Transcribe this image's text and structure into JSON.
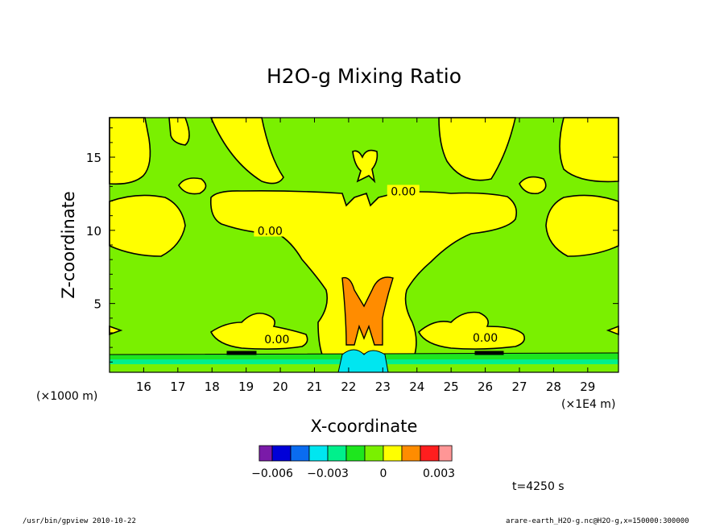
{
  "chart_data": {
    "type": "heatmap",
    "title": "H2O-g Mixing Ratio",
    "xlabel": "X-coordinate",
    "ylabel": "Z-coordinate",
    "x_unit_left": "(×1000 m)",
    "x_unit_right": "(×1E4 m)",
    "x_ticks": [
      16,
      17,
      18,
      19,
      20,
      21,
      22,
      23,
      24,
      25,
      26,
      27,
      28,
      29
    ],
    "y_ticks": [
      5,
      10,
      15
    ],
    "xlim": [
      15.0,
      29.9
    ],
    "ylim": [
      0.3,
      17.7
    ],
    "grid": false,
    "contour_labels": [
      {
        "text": "0.00",
        "x": 23.6,
        "y": 12.5
      },
      {
        "text": "0.00",
        "x": 19.7,
        "y": 9.8
      },
      {
        "text": "0.00",
        "x": 19.9,
        "y": 2.4
      },
      {
        "text": "0.00",
        "x": 26.0,
        "y": 2.5
      }
    ],
    "colorbar": {
      "levels": [
        -0.006,
        -0.005,
        -0.004,
        -0.003,
        -0.002,
        -0.001,
        0,
        0.001,
        0.002,
        0.003
      ],
      "tick_labels": [
        "−0.006",
        "−0.003",
        "0",
        "0.003"
      ],
      "tick_values": [
        -0.006,
        -0.003,
        0,
        0.003
      ],
      "colors": [
        "#7a1aa8",
        "#0000d8",
        "#0a6cf0",
        "#00e6f0",
        "#00f08c",
        "#1ee61e",
        "#7af000",
        "#ffff00",
        "#ff8c00",
        "#ff1e1e",
        "#ff9696"
      ]
    },
    "annotation": "t=4250 s"
  },
  "footer": {
    "left": "/usr/bin/gpview   2010-10-22",
    "right": "arare-earth_H2O-g.nc@H2O-g,x=150000:300000"
  },
  "colors": {
    "background": "#7af000",
    "positive": "#ffff00",
    "orange": "#ff8c00",
    "green": "#1ee61e",
    "cyan": "#00e6f0"
  }
}
